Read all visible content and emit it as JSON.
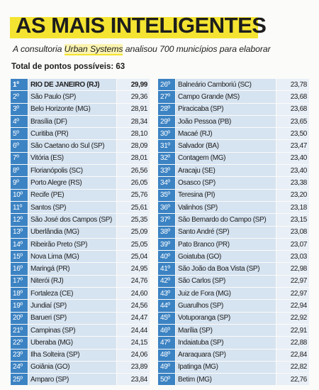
{
  "header": {
    "title": "AS MAIS INTELIGENTES",
    "subtitle": [
      "A consultoria",
      "Urban Systems",
      "analisou 700 municípios para elaborar"
    ],
    "note": "Total de pontos possíveis: 63"
  },
  "tables": [
    {
      "rows": [
        [
          "1º",
          "RIO DE JANEIRO (RJ)",
          "29,99"
        ],
        [
          "2º",
          "São Paulo (SP)",
          "29,36"
        ],
        [
          "3º",
          "Belo Horizonte (MG)",
          "28,91"
        ],
        [
          "4º",
          "Brasília (DF)",
          "28,34"
        ],
        [
          "5º",
          "Curitiba (PR)",
          "28,10"
        ],
        [
          "6º",
          "São Caetano do Sul (SP)",
          "28,09"
        ],
        [
          "7º",
          "Vitória (ES)",
          "28,01"
        ],
        [
          "8º",
          "Florianópolis (SC)",
          "26,56"
        ],
        [
          "9º",
          "Porto Alegre (RS)",
          "26,05"
        ],
        [
          "10º",
          "Recife (PE)",
          "25,76"
        ],
        [
          "11º",
          "Santos (SP)",
          "25,61"
        ],
        [
          "12º",
          "São José dos Campos (SP)",
          "25,35"
        ],
        [
          "13º",
          "Uberlândia (MG)",
          "25,09"
        ],
        [
          "14º",
          "Ribeirão Preto (SP)",
          "25,05"
        ],
        [
          "15º",
          "Nova Lima (MG)",
          "25,04"
        ],
        [
          "16º",
          "Maringá (PR)",
          "24,95"
        ],
        [
          "17º",
          "Niterói (RJ)",
          "24,76"
        ],
        [
          "18º",
          "Fortaleza (CE)",
          "24,60"
        ],
        [
          "19º",
          "Jundiaí (SP)",
          "24,56"
        ],
        [
          "20º",
          "Barueri (SP)",
          "24,47"
        ],
        [
          "21º",
          "Campinas (SP)",
          "24,44"
        ],
        [
          "22º",
          "Uberaba (MG)",
          "24,15"
        ],
        [
          "23º",
          "Ilha Solteira (SP)",
          "24,06"
        ],
        [
          "24º",
          "Goiânia (GO)",
          "23,89"
        ],
        [
          "25º",
          "Amparo (SP)",
          "23,84"
        ]
      ]
    },
    {
      "rows": [
        [
          "26º",
          "Balneário Camboriú (SC)",
          "23,78"
        ],
        [
          "27º",
          "Campo Grande (MS)",
          "23,68"
        ],
        [
          "28º",
          "Piracicaba (SP)",
          "23,68"
        ],
        [
          "29º",
          "João Pessoa (PB)",
          "23,65"
        ],
        [
          "30º",
          "Macaé (RJ)",
          "23,50"
        ],
        [
          "31º",
          "Salvador (BA)",
          "23,47"
        ],
        [
          "32º",
          "Contagem (MG)",
          "23,40"
        ],
        [
          "33º",
          "Aracaju (SE)",
          "23,40"
        ],
        [
          "34º",
          "Osasco (SP)",
          "23,38"
        ],
        [
          "35º",
          "Teresina (PI)",
          "23,20"
        ],
        [
          "36º",
          "Valinhos (SP)",
          "23,18"
        ],
        [
          "37º",
          "São Bernardo do Campo (SP)",
          "23,15"
        ],
        [
          "38º",
          "Santo André (SP)",
          "23,08"
        ],
        [
          "39º",
          "Pato Branco (PR)",
          "23,07"
        ],
        [
          "40º",
          "Goiatuba (GO)",
          "23,03"
        ],
        [
          "41º",
          "São João da Boa Vista (SP)",
          "22,98"
        ],
        [
          "42º",
          "São Carlos (SP)",
          "22,97"
        ],
        [
          "43º",
          "Juiz de Fora (MG)",
          "22,97"
        ],
        [
          "44º",
          "Guarulhos (SP)",
          "22,94"
        ],
        [
          "45º",
          "Votuporanga (SP)",
          "22,92"
        ],
        [
          "46º",
          "Marília (SP)",
          "22,91"
        ],
        [
          "47º",
          "Indaiatuba (SP)",
          "22,88"
        ],
        [
          "48º",
          "Araraquara (SP)",
          "22,84"
        ],
        [
          "49º",
          "Ipatinga (MG)",
          "22,82"
        ],
        [
          "50º",
          "Betim (MG)",
          "22,76"
        ]
      ]
    }
  ]
}
